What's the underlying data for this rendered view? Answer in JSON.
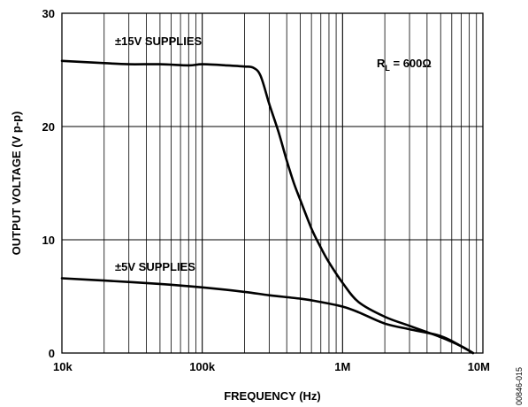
{
  "chart_data": {
    "type": "line",
    "xscale": "log",
    "xlim": [
      10000,
      10000000
    ],
    "ylim": [
      0,
      30
    ],
    "xlabel": "FREQUENCY (Hz)",
    "ylabel": "OUTPUT VOLTAGE (V p-p)",
    "x_tick_labels": [
      "10k",
      "100k",
      "1M",
      "10M"
    ],
    "x_ticks": [
      10000,
      100000,
      1000000,
      10000000
    ],
    "y_ticks": [
      0,
      10,
      20,
      30
    ],
    "grid": true,
    "series": [
      {
        "name": "±15V SUPPLIES",
        "x": [
          10000,
          20000,
          30000,
          50000,
          80000,
          100000,
          150000,
          200000,
          230000,
          260000,
          300000,
          350000,
          400000,
          450000,
          500000,
          600000,
          700000,
          800000,
          1000000,
          1300000,
          2000000,
          3000000,
          5000000,
          7000000,
          8500000
        ],
        "y": [
          25.8,
          25.6,
          25.5,
          25.5,
          25.4,
          25.5,
          25.4,
          25.3,
          25.2,
          24.5,
          22.0,
          19.5,
          17.0,
          15.0,
          13.5,
          11.0,
          9.3,
          8.0,
          6.2,
          4.5,
          3.2,
          2.4,
          1.4,
          0.6,
          0.0
        ]
      },
      {
        "name": "±5V SUPPLIES",
        "x": [
          10000,
          20000,
          50000,
          100000,
          200000,
          300000,
          500000,
          700000,
          1000000,
          1300000,
          2000000,
          3000000,
          5000000,
          7000000,
          8500000
        ],
        "y": [
          6.6,
          6.4,
          6.1,
          5.8,
          5.4,
          5.1,
          4.8,
          4.5,
          4.1,
          3.6,
          2.6,
          2.1,
          1.5,
          0.6,
          0.0
        ]
      }
    ],
    "annotations": {
      "load_label": "R",
      "load_subscript": "L",
      "load_value": " = 600Ω"
    },
    "figure_id": "00846-015"
  }
}
